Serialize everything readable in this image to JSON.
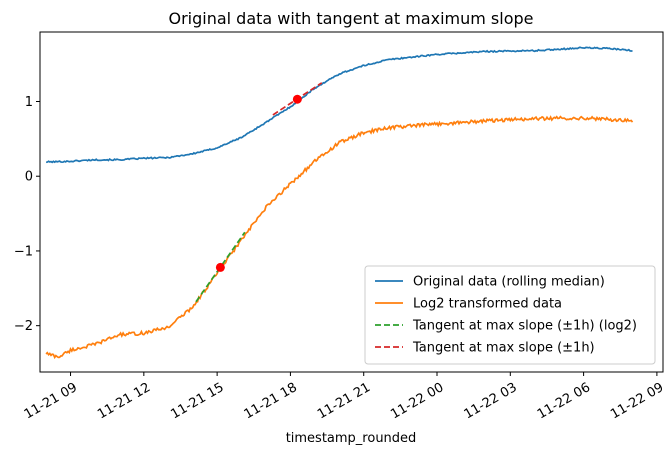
{
  "chart_data": {
    "type": "line",
    "title": "Original data with tangent at maximum slope",
    "xlabel": "timestamp_rounded",
    "ylabel": "",
    "x_type": "datetime",
    "xlim": [
      "2024-11-21T07:45",
      "2024-11-22T09:15"
    ],
    "ylim": [
      -2.62,
      1.93
    ],
    "x_ticks": [
      {
        "t": "2024-11-21T09:00",
        "label": "11-21 09"
      },
      {
        "t": "2024-11-21T12:00",
        "label": "11-21 12"
      },
      {
        "t": "2024-11-21T15:00",
        "label": "11-21 15"
      },
      {
        "t": "2024-11-21T18:00",
        "label": "11-21 18"
      },
      {
        "t": "2024-11-21T21:00",
        "label": "11-21 21"
      },
      {
        "t": "2024-11-22T00:00",
        "label": "11-22 00"
      },
      {
        "t": "2024-11-22T03:00",
        "label": "11-22 03"
      },
      {
        "t": "2024-11-22T06:00",
        "label": "11-22 06"
      },
      {
        "t": "2024-11-22T09:00",
        "label": "11-22 09"
      }
    ],
    "y_ticks": [
      {
        "v": 1,
        "label": "1"
      },
      {
        "v": 0,
        "label": "0"
      },
      {
        "v": -1,
        "label": "−1"
      },
      {
        "v": -2,
        "label": "−2"
      }
    ],
    "grid": false,
    "legend_position": "bottom-right",
    "series": [
      {
        "name": "Original data (rolling median)",
        "color": "#1f77b4",
        "style": "solid",
        "x": [
          "2024-11-21T08:00",
          "2024-11-21T09:00",
          "2024-11-21T10:00",
          "2024-11-21T11:00",
          "2024-11-21T12:00",
          "2024-11-21T13:00",
          "2024-11-21T14:00",
          "2024-11-21T15:00",
          "2024-11-21T16:00",
          "2024-11-21T17:00",
          "2024-11-21T18:00",
          "2024-11-21T19:00",
          "2024-11-21T20:00",
          "2024-11-21T21:00",
          "2024-11-21T22:00",
          "2024-11-22T00:00",
          "2024-11-22T02:00",
          "2024-11-22T04:00",
          "2024-11-22T06:00",
          "2024-11-22T07:00",
          "2024-11-22T08:00"
        ],
        "y": [
          0.19,
          0.2,
          0.22,
          0.22,
          0.24,
          0.25,
          0.3,
          0.38,
          0.52,
          0.72,
          0.93,
          1.18,
          1.37,
          1.48,
          1.56,
          1.63,
          1.67,
          1.68,
          1.72,
          1.71,
          1.68
        ]
      },
      {
        "name": "Log2 transformed data",
        "color": "#ff7f0e",
        "style": "solid",
        "x": [
          "2024-11-21T08:00",
          "2024-11-21T08:30",
          "2024-11-21T09:00",
          "2024-11-21T10:00",
          "2024-11-21T11:00",
          "2024-11-21T12:00",
          "2024-11-21T13:00",
          "2024-11-21T14:00",
          "2024-11-21T15:00",
          "2024-11-21T16:00",
          "2024-11-21T17:00",
          "2024-11-21T18:00",
          "2024-11-21T19:00",
          "2024-11-21T20:00",
          "2024-11-21T21:00",
          "2024-11-21T22:00",
          "2024-11-22T00:00",
          "2024-11-22T02:00",
          "2024-11-22T04:00",
          "2024-11-22T06:00",
          "2024-11-22T07:00",
          "2024-11-22T08:00"
        ],
        "y": [
          -2.37,
          -2.42,
          -2.33,
          -2.25,
          -2.12,
          -2.1,
          -2.02,
          -1.75,
          -1.3,
          -0.85,
          -0.42,
          -0.1,
          0.2,
          0.45,
          0.58,
          0.65,
          0.7,
          0.74,
          0.77,
          0.78,
          0.76,
          0.74
        ]
      },
      {
        "name": "Tangent at max slope (±1h) (log2)",
        "color": "#2ca02c",
        "style": "dashed",
        "x": [
          "2024-11-21T14:08",
          "2024-11-21T16:08"
        ],
        "y": [
          -1.68,
          -0.75
        ]
      },
      {
        "name": "Tangent at max slope (±1h)",
        "color": "#d62728",
        "style": "dashed",
        "x": [
          "2024-11-21T17:17",
          "2024-11-21T19:17"
        ],
        "y": [
          0.82,
          1.25
        ]
      }
    ],
    "markers": [
      {
        "x": "2024-11-21T15:08",
        "y": -1.22,
        "color": "#ff0000"
      },
      {
        "x": "2024-11-21T18:17",
        "y": 1.03,
        "color": "#ff0000"
      }
    ]
  }
}
